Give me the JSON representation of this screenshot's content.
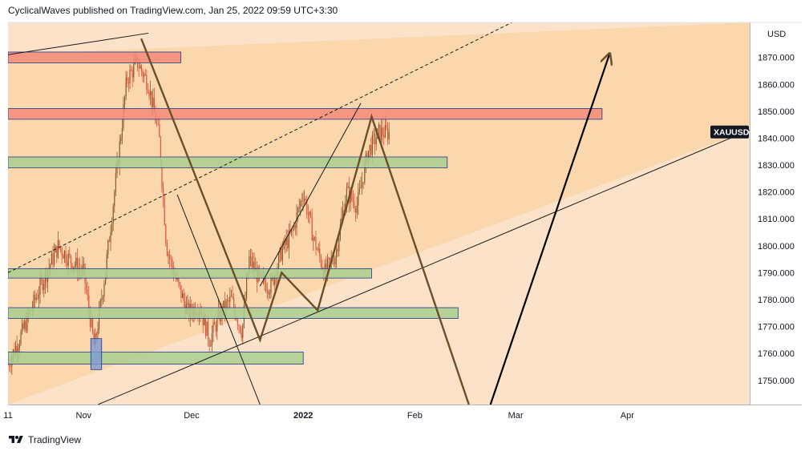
{
  "header": {
    "publish_line": "CyclicalWaves published on TradingView.com, Jan 25, 2022 09:59 UTC+3:30"
  },
  "footer": {
    "brand": "TradingView",
    "logo_icon": "tradingview-logo-icon"
  },
  "colors": {
    "background": "#fbe2c8",
    "channel": "#fbd3a6",
    "candle_up": "#8b5a2b",
    "candle_down": "#e0533d",
    "resistance_zone": "#f4897a",
    "support_zone": "#a9cf8f",
    "zone_border": "#1e3a8a",
    "wave_path": "#6b4e2a",
    "projection": "#000000"
  },
  "chart_data": {
    "type": "candlestick",
    "symbol": "XAUUSD",
    "currency": "USD",
    "price_axis": {
      "ticks": [
        1750,
        1760,
        1770,
        1780,
        1790,
        1800,
        1810,
        1820,
        1830,
        1840,
        1850,
        1860,
        1870
      ],
      "tick_labels": [
        "1750.000",
        "1760.000",
        "1770.000",
        "1780.000",
        "1790.000",
        "1800.000",
        "1810.000",
        "1820.000",
        "1830.000",
        "1840.000",
        "1850.000",
        "1860.000",
        "1870.000"
      ],
      "range": [
        1741,
        1883
      ]
    },
    "time_axis": {
      "range": [
        "2021-10-11",
        "2022-05-05"
      ],
      "ticks": [
        {
          "label": "11",
          "date": "2021-10-11"
        },
        {
          "label": "Nov",
          "date": "2021-11-01"
        },
        {
          "label": "Dec",
          "date": "2021-12-01"
        },
        {
          "label": "2022",
          "date": "2022-01-01"
        },
        {
          "label": "Feb",
          "date": "2022-02-01"
        },
        {
          "label": "Mar",
          "date": "2022-03-01"
        },
        {
          "label": "Apr",
          "date": "2022-04-01"
        }
      ]
    },
    "current_price": 1842,
    "price_path": [
      {
        "date": "2021-10-11",
        "price": 1756
      },
      {
        "date": "2021-10-15",
        "price": 1768
      },
      {
        "date": "2021-10-20",
        "price": 1785
      },
      {
        "date": "2021-10-25",
        "price": 1800
      },
      {
        "date": "2021-10-28",
        "price": 1795
      },
      {
        "date": "2021-11-01",
        "price": 1790
      },
      {
        "date": "2021-11-04",
        "price": 1762
      },
      {
        "date": "2021-11-07",
        "price": 1790
      },
      {
        "date": "2021-11-10",
        "price": 1825
      },
      {
        "date": "2021-11-13",
        "price": 1862
      },
      {
        "date": "2021-11-16",
        "price": 1868
      },
      {
        "date": "2021-11-19",
        "price": 1860
      },
      {
        "date": "2021-11-22",
        "price": 1840
      },
      {
        "date": "2021-11-24",
        "price": 1800
      },
      {
        "date": "2021-11-26",
        "price": 1790
      },
      {
        "date": "2021-11-30",
        "price": 1775
      },
      {
        "date": "2021-12-03",
        "price": 1778
      },
      {
        "date": "2021-12-06",
        "price": 1765
      },
      {
        "date": "2021-12-09",
        "price": 1775
      },
      {
        "date": "2021-12-12",
        "price": 1780
      },
      {
        "date": "2021-12-15",
        "price": 1768
      },
      {
        "date": "2021-12-17",
        "price": 1795
      },
      {
        "date": "2021-12-20",
        "price": 1787
      },
      {
        "date": "2021-12-23",
        "price": 1785
      },
      {
        "date": "2021-12-26",
        "price": 1798
      },
      {
        "date": "2021-12-29",
        "price": 1805
      },
      {
        "date": "2022-01-01",
        "price": 1820
      },
      {
        "date": "2022-01-04",
        "price": 1802
      },
      {
        "date": "2022-01-07",
        "price": 1790
      },
      {
        "date": "2022-01-10",
        "price": 1797
      },
      {
        "date": "2022-01-13",
        "price": 1820
      },
      {
        "date": "2022-01-16",
        "price": 1815
      },
      {
        "date": "2022-01-19",
        "price": 1835
      },
      {
        "date": "2022-01-22",
        "price": 1842
      },
      {
        "date": "2022-01-25",
        "price": 1842
      }
    ],
    "horizontal_zones": [
      {
        "kind": "resistance",
        "from": "2021-10-11",
        "to": "2021-11-28",
        "low": 1868,
        "high": 1872
      },
      {
        "kind": "resistance",
        "from": "2021-10-11",
        "to": "2022-03-25",
        "low": 1847,
        "high": 1851
      },
      {
        "kind": "support",
        "from": "2021-10-11",
        "to": "2022-02-10",
        "low": 1829,
        "high": 1833
      },
      {
        "kind": "support",
        "from": "2021-10-11",
        "to": "2022-01-20",
        "low": 1788,
        "high": 1791.5
      },
      {
        "kind": "support",
        "from": "2021-10-11",
        "to": "2022-02-13",
        "low": 1773,
        "high": 1777
      },
      {
        "kind": "support",
        "from": "2021-10-11",
        "to": "2022-01-01",
        "low": 1756,
        "high": 1760.5
      },
      {
        "kind": "marker",
        "from": "2021-11-03",
        "to": "2021-11-06",
        "low": 1754,
        "high": 1765.5
      }
    ],
    "wave_path": [
      {
        "date": "2021-11-17",
        "price": 1877
      },
      {
        "date": "2021-12-20",
        "price": 1765
      },
      {
        "date": "2021-12-26",
        "price": 1790
      },
      {
        "date": "2022-01-05",
        "price": 1776
      },
      {
        "date": "2022-01-20",
        "price": 1848
      },
      {
        "date": "2022-02-16",
        "price": 1741
      }
    ],
    "projection_path": [
      {
        "date": "2022-02-22",
        "price": 1741
      },
      {
        "date": "2022-03-27",
        "price": 1871
      }
    ],
    "trend_lines": [
      {
        "style": "solid",
        "from": {
          "date": "2021-10-11",
          "price": 1871
        },
        "to": {
          "date": "2021-11-19",
          "price": 1879
        }
      },
      {
        "style": "solid",
        "from": {
          "date": "2021-11-05",
          "price": 1741
        },
        "to": {
          "date": "2022-05-05",
          "price": 1843
        }
      },
      {
        "style": "dashed",
        "from": {
          "date": "2021-10-11",
          "price": 1790
        },
        "to": {
          "date": "2022-02-28",
          "price": 1883
        }
      },
      {
        "style": "solid",
        "from": {
          "date": "2021-11-27",
          "price": 1819
        },
        "to": {
          "date": "2021-12-20",
          "price": 1741
        }
      },
      {
        "style": "solid",
        "from": {
          "date": "2021-12-20",
          "price": 1785
        },
        "to": {
          "date": "2022-01-17",
          "price": 1853
        }
      }
    ]
  }
}
